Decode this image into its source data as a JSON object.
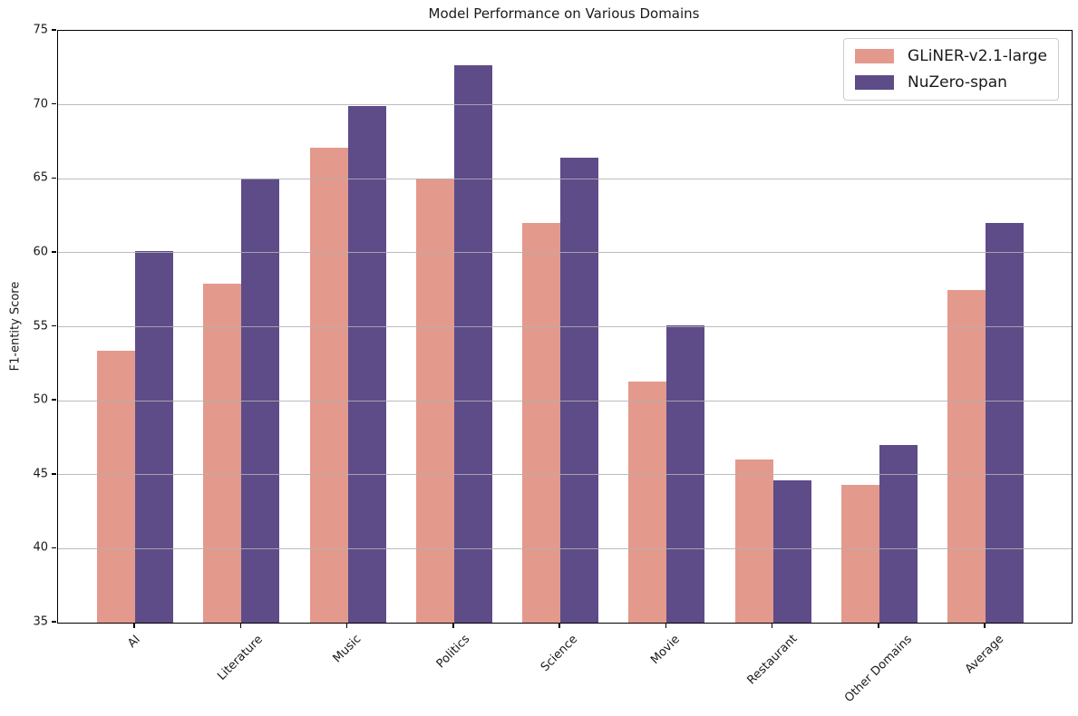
{
  "chart_data": {
    "type": "bar",
    "title": "Model Performance on Various Domains",
    "xlabel": "",
    "ylabel": "F1-entity Score",
    "ylim": [
      35,
      75
    ],
    "yticks": [
      35,
      40,
      45,
      50,
      55,
      60,
      65,
      70,
      75
    ],
    "grid": true,
    "legend_position": "upper right",
    "categories": [
      "AI",
      "Literature",
      "Music",
      "Politics",
      "Science",
      "Movie",
      "Restaurant",
      "Other Domains",
      "Average"
    ],
    "series": [
      {
        "name": "GLiNER-v2.1-large",
        "color": "#e4998d",
        "values": [
          53.4,
          57.9,
          67.1,
          65.0,
          62.0,
          51.3,
          46.0,
          44.3,
          57.5
        ]
      },
      {
        "name": "NuZero-span",
        "color": "#5e4c89",
        "values": [
          60.1,
          65.0,
          69.9,
          72.7,
          66.4,
          55.1,
          44.6,
          47.0,
          62.0
        ]
      }
    ],
    "colors": {
      "grid": "#b0b0b0",
      "spine": "#000000",
      "text": "#1a1a1a",
      "background": "#ffffff",
      "legend_border": "#cccccc"
    }
  }
}
